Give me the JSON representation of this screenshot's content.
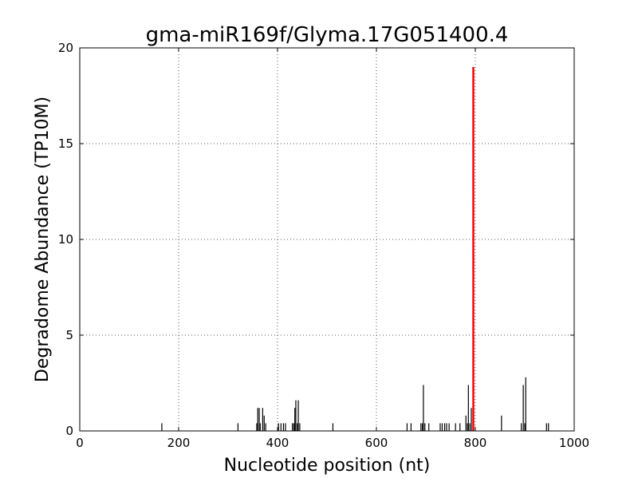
{
  "chart_data": {
    "type": "bar",
    "title": "gma-miR169f/Glyma.17G051400.4",
    "xlabel": "Nucleotide position (nt)",
    "ylabel": "Degradome Abundance (TP10M)",
    "xlim": [
      0,
      1000
    ],
    "ylim": [
      0,
      20
    ],
    "xticks": [
      0,
      200,
      400,
      600,
      800,
      1000
    ],
    "yticks": [
      0,
      5,
      10,
      15,
      20
    ],
    "grid": true,
    "colors": {
      "bars": "#000000",
      "highlight": "#ff0000",
      "grid": "#555555"
    },
    "series": [
      {
        "values": [
          [
            166,
            0.4
          ],
          [
            320,
            0.4
          ],
          [
            358,
            0.4
          ],
          [
            360,
            1.2
          ],
          [
            363,
            1.2
          ],
          [
            365,
            0.4
          ],
          [
            370,
            1.2
          ],
          [
            373,
            0.8
          ],
          [
            376,
            0.4
          ],
          [
            402,
            0.4
          ],
          [
            407,
            0.4
          ],
          [
            412,
            0.4
          ],
          [
            416,
            0.4
          ],
          [
            430,
            0.4
          ],
          [
            433,
            0.4
          ],
          [
            435,
            1.2
          ],
          [
            437,
            1.6
          ],
          [
            440,
            0.4
          ],
          [
            442,
            1.6
          ],
          [
            445,
            0.4
          ],
          [
            512,
            0.4
          ],
          [
            662,
            0.4
          ],
          [
            670,
            0.4
          ],
          [
            690,
            0.4
          ],
          [
            693,
            0.4
          ],
          [
            695,
            2.4
          ],
          [
            698,
            0.4
          ],
          [
            706,
            0.4
          ],
          [
            729,
            0.4
          ],
          [
            733,
            0.4
          ],
          [
            738,
            0.4
          ],
          [
            742,
            0.4
          ],
          [
            747,
            0.4
          ],
          [
            760,
            0.4
          ],
          [
            769,
            0.4
          ],
          [
            781,
            0.8
          ],
          [
            784,
            0.4
          ],
          [
            786,
            2.4
          ],
          [
            789,
            0.4
          ],
          [
            792,
            1.2
          ],
          [
            853,
            0.8
          ],
          [
            893,
            0.4
          ],
          [
            897,
            2.4
          ],
          [
            900,
            0.4
          ],
          [
            902,
            2.8
          ],
          [
            944,
            0.4
          ],
          [
            948,
            0.4
          ]
        ]
      },
      {
        "values": [
          [
            796,
            19.0
          ]
        ]
      }
    ]
  }
}
